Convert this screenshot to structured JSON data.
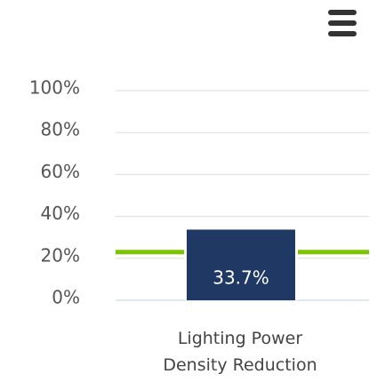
{
  "chart_data": {
    "type": "bar",
    "categories": [
      "Lighting Power Density Reduction"
    ],
    "values": [
      33.7
    ],
    "value_labels": [
      "33.7%"
    ],
    "color": "#1f3864",
    "ylim": [
      0,
      100
    ],
    "yticks": [
      {
        "value": 0,
        "label": "0%"
      },
      {
        "value": 20,
        "label": "20%"
      },
      {
        "value": 40,
        "label": "40%"
      },
      {
        "value": 60,
        "label": "60%"
      },
      {
        "value": 80,
        "label": "80%"
      },
      {
        "value": 100,
        "label": "100%"
      }
    ],
    "grid": true,
    "reference_line": {
      "value": 23,
      "color": "#7dc400"
    }
  }
}
